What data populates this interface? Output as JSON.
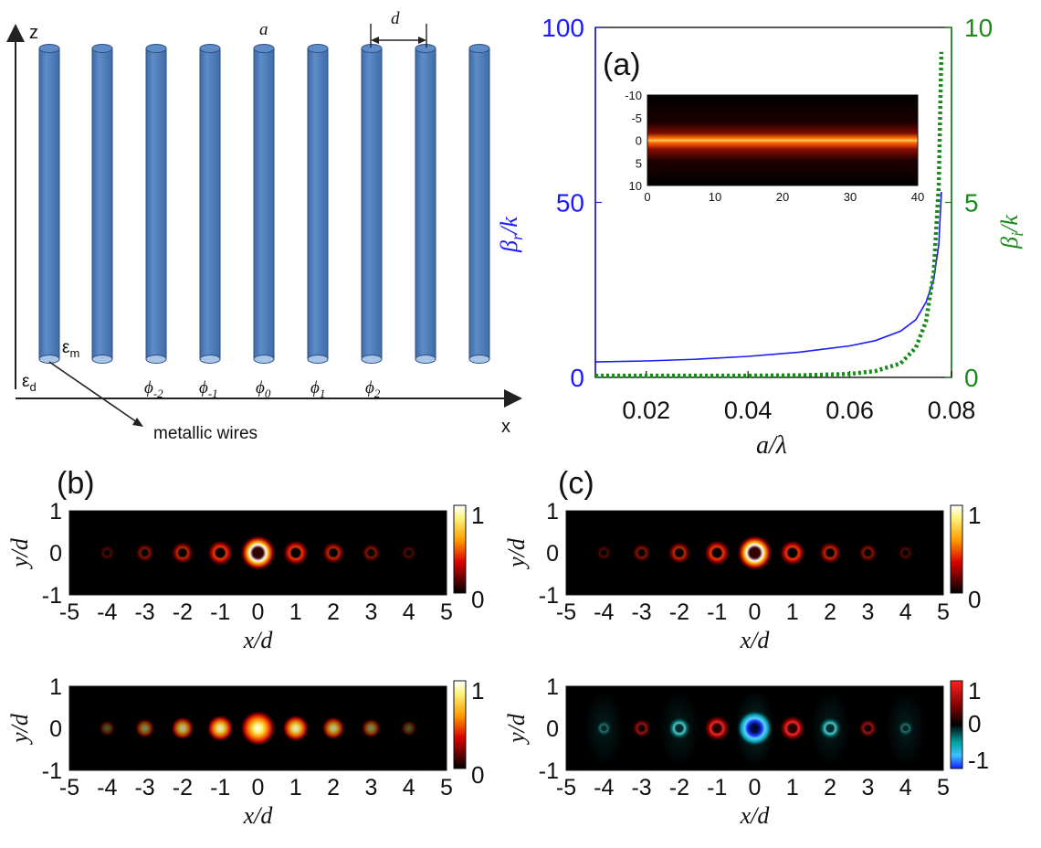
{
  "schematic": {
    "axis_z": "z",
    "axis_x": "x",
    "label_a": "a",
    "label_d": "d",
    "eps_m": "ε",
    "eps_m_sub": "m",
    "eps_d": "ε",
    "eps_d_sub": "d",
    "wire_label": "metallic wires",
    "phi": [
      "ϕ",
      "ϕ",
      "ϕ",
      "ϕ",
      "ϕ"
    ],
    "phi_sub": [
      "-2",
      "-1",
      "0",
      "1",
      "2"
    ],
    "wire_color": "#4f7fbf"
  },
  "panel_a": {
    "label": "(a)",
    "xlabel": "a/λ",
    "ylabel_left": "β",
    "ylabel_left_sub": "r",
    "ylabel_left_tail": "/k",
    "ylabel_right": "β",
    "ylabel_right_sub": "i",
    "ylabel_right_tail": "/k",
    "left_color": "#1a1aff",
    "right_color": "#1a8a1a",
    "inset": {
      "xticks": [
        "0",
        "10",
        "20",
        "30",
        "40"
      ],
      "yticks": [
        "-10",
        "-5",
        "0",
        "5",
        "10"
      ]
    }
  },
  "panel_b": {
    "label": "(b)"
  },
  "panel_c": {
    "label": "(c)"
  },
  "mode_plots": {
    "xlabel": "x/d",
    "ylabel": "y/d",
    "xticks": [
      "-5",
      "-4",
      "-3",
      "-2",
      "-1",
      "0",
      "1",
      "2",
      "3",
      "4",
      "5"
    ],
    "yticks": [
      "1",
      "0",
      "-1"
    ],
    "cbar_hot": [
      "1",
      "0"
    ],
    "cbar_div": [
      "1",
      "0",
      "-1"
    ]
  },
  "chart_data": {
    "type": "line",
    "title": "",
    "xlabel": "a/λ",
    "xlim": [
      0.01,
      0.08
    ],
    "xticks": [
      0.02,
      0.04,
      0.06,
      0.08
    ],
    "ylim_left": [
      0,
      100
    ],
    "yticks_left": [
      0,
      50,
      100
    ],
    "ylim_right": [
      0,
      10
    ],
    "yticks_right": [
      0,
      5,
      10
    ],
    "series": [
      {
        "axis": "left",
        "style": "solid",
        "x": [
          0.01,
          0.02,
          0.03,
          0.04,
          0.05,
          0.06,
          0.065,
          0.07,
          0.073,
          0.075,
          0.0765,
          0.0775,
          0.078
        ],
        "y": [
          4.4,
          4.7,
          5.2,
          6.0,
          7.2,
          9.0,
          10.5,
          13.2,
          16.5,
          21.5,
          28.0,
          38.0,
          53.0
        ]
      },
      {
        "axis": "right",
        "style": "dotted",
        "x": [
          0.01,
          0.02,
          0.03,
          0.04,
          0.05,
          0.06,
          0.065,
          0.07,
          0.073,
          0.075,
          0.0765,
          0.0775,
          0.078
        ],
        "y": [
          0.05,
          0.05,
          0.05,
          0.05,
          0.06,
          0.1,
          0.18,
          0.4,
          0.85,
          1.6,
          3.0,
          5.5,
          9.3
        ]
      }
    ]
  }
}
